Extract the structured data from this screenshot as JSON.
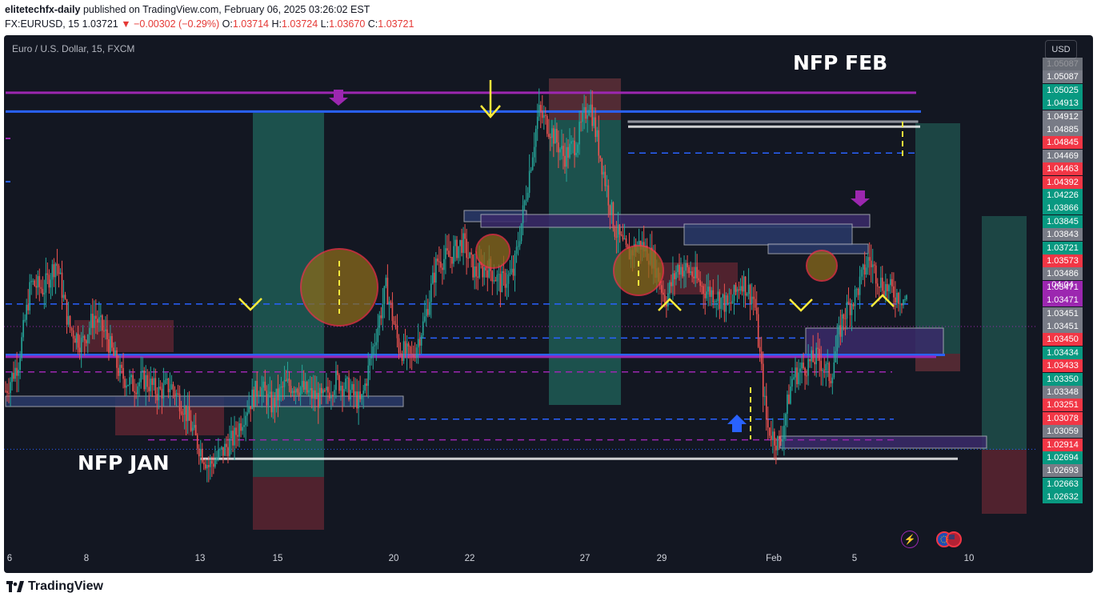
{
  "header": {
    "publisher": "elitetechfx-daily",
    "published_text": " published on TradingView.com, February 06, 2025 03:26:02 EST",
    "symbol": "FX:EURUSD, 15",
    "last": "1.03721",
    "change": "▼ −0.00302 (−0.29%)",
    "o_label": "O:",
    "o": "1.03714",
    "h_label": "H:",
    "h": "1.03724",
    "l_label": "L:",
    "l": "1.03670",
    "c_label": "C:",
    "c": "1.03721"
  },
  "chart": {
    "title": "Euro / U.S. Dollar, 15, FXCM",
    "currency_button": "USD",
    "annotation_feb": "NFP FEB",
    "annotation_jan": "NFP JAN",
    "countdown": "04:04"
  },
  "colors": {
    "background": "#131722",
    "up_candle": "#26a69a",
    "down_candle": "#ef5350",
    "purple_line": "#9c27b0",
    "blue_line": "#2962ff",
    "yellow": "#ffeb3b"
  },
  "chart_data": {
    "type": "candlestick",
    "symbol": "EURUSD",
    "timeframe": "15",
    "ylim": [
      1.0255,
      1.0518
    ],
    "x_ticks": [
      "6",
      "8",
      "13",
      "15",
      "20",
      "22",
      "27",
      "29",
      "Feb",
      "5",
      "10"
    ],
    "price_scale": [
      {
        "value": "1.05087",
        "color": "#b2b5be",
        "faded": true
      },
      {
        "value": "1.05087",
        "color": "#787b86"
      },
      {
        "value": "1.05025",
        "color": "#089981"
      },
      {
        "value": "1.04913",
        "color": "#089981"
      },
      {
        "value": "1.04912",
        "color": "#787b86"
      },
      {
        "value": "1.04885",
        "color": "#787b86"
      },
      {
        "value": "1.04845",
        "color": "#f23645"
      },
      {
        "value": "1.04469",
        "color": "#787b86"
      },
      {
        "value": "1.04463",
        "color": "#f23645"
      },
      {
        "value": "1.04392",
        "color": "#f23645"
      },
      {
        "value": "1.04226",
        "color": "#089981"
      },
      {
        "value": "1.03866",
        "color": "#089981"
      },
      {
        "value": "1.03845",
        "color": "#089981"
      },
      {
        "value": "1.03843",
        "color": "#787b86"
      },
      {
        "value": "1.03721",
        "color": "#089981"
      },
      {
        "value": "1.03573",
        "color": "#f23645"
      },
      {
        "value": "1.03486",
        "color": "#787b86"
      },
      {
        "value": "1.03471",
        "color": "#9c27b0"
      },
      {
        "value": "1.03471",
        "color": "#9c27b0"
      },
      {
        "value": "1.03451",
        "color": "#787b86"
      },
      {
        "value": "1.03451",
        "color": "#787b86"
      },
      {
        "value": "1.03450",
        "color": "#f23645"
      },
      {
        "value": "1.03434",
        "color": "#089981"
      },
      {
        "value": "1.03433",
        "color": "#f23645"
      },
      {
        "value": "1.03350",
        "color": "#089981"
      },
      {
        "value": "1.03348",
        "color": "#787b86"
      },
      {
        "value": "1.03251",
        "color": "#f23645"
      },
      {
        "value": "1.03078",
        "color": "#f23645"
      },
      {
        "value": "1.03059",
        "color": "#787b86"
      },
      {
        "value": "1.02914",
        "color": "#f23645"
      },
      {
        "value": "1.02694",
        "color": "#089981"
      },
      {
        "value": "1.02693",
        "color": "#787b86"
      },
      {
        "value": "1.02663",
        "color": "#089981"
      },
      {
        "value": "1.02632",
        "color": "#089981"
      }
    ],
    "price_path": [
      [
        0,
        1.0338
      ],
      [
        1,
        1.0353
      ],
      [
        2,
        1.0395
      ],
      [
        3,
        1.0392
      ],
      [
        4,
        1.0407
      ],
      [
        5,
        1.0372
      ],
      [
        6,
        1.0363
      ],
      [
        7,
        1.0378
      ],
      [
        8,
        1.0366
      ],
      [
        9,
        1.0347
      ],
      [
        10,
        1.0341
      ],
      [
        11,
        1.0344
      ],
      [
        12,
        1.0337
      ],
      [
        13,
        1.0341
      ],
      [
        14,
        1.033
      ],
      [
        15,
        1.0312
      ],
      [
        16,
        1.0298
      ],
      [
        17,
        1.0305
      ],
      [
        18,
        1.0313
      ],
      [
        19,
        1.0329
      ],
      [
        20,
        1.0341
      ],
      [
        21,
        1.033
      ],
      [
        22,
        1.0341
      ],
      [
        23,
        1.0341
      ],
      [
        24,
        1.0336
      ],
      [
        25,
        1.0333
      ],
      [
        26,
        1.0344
      ],
      [
        27,
        1.0339
      ],
      [
        28,
        1.0331
      ],
      [
        29,
        1.0362
      ],
      [
        30,
        1.0393
      ],
      [
        31,
        1.0361
      ],
      [
        32,
        1.0355
      ],
      [
        33,
        1.0375
      ],
      [
        34,
        1.0407
      ],
      [
        35,
        1.0409
      ],
      [
        36,
        1.0417
      ],
      [
        37,
        1.04
      ],
      [
        38,
        1.0404
      ],
      [
        39,
        1.0395
      ],
      [
        40,
        1.04
      ],
      [
        41,
        1.0442
      ],
      [
        42,
        1.0486
      ],
      [
        43,
        1.0476
      ],
      [
        44,
        1.0462
      ],
      [
        45,
        1.047
      ],
      [
        46,
        1.0492
      ],
      [
        47,
        1.0458
      ],
      [
        48,
        1.0424
      ],
      [
        49,
        1.041
      ],
      [
        50,
        1.0416
      ],
      [
        51,
        1.0408
      ],
      [
        52,
        1.0386
      ],
      [
        53,
        1.0404
      ],
      [
        54,
        1.0401
      ],
      [
        55,
        1.0392
      ],
      [
        56,
        1.0389
      ],
      [
        57,
        1.0382
      ],
      [
        58,
        1.0397
      ],
      [
        59,
        1.0386
      ],
      [
        60,
        1.0319
      ],
      [
        61,
        1.0309
      ],
      [
        62,
        1.0345
      ],
      [
        63,
        1.0351
      ],
      [
        64,
        1.0356
      ],
      [
        65,
        1.0345
      ],
      [
        66,
        1.0378
      ],
      [
        67,
        1.0389
      ],
      [
        68,
        1.0408
      ],
      [
        69,
        1.0395
      ],
      [
        70,
        1.039
      ],
      [
        71,
        1.0386
      ]
    ],
    "path_x_range": [
      0,
      71
    ],
    "horizontal_levels": [
      {
        "price": 1.0496,
        "color": "#9c27b0",
        "style": "solid"
      },
      {
        "price": 1.0486,
        "color": "#2962ff",
        "style": "solid"
      },
      {
        "price": 1.0357,
        "color": "#2962ff",
        "style": "solid"
      },
      {
        "price": 1.0356,
        "color": "#9c27b0",
        "style": "solid"
      },
      {
        "price": 1.0384,
        "color": "#2962ff",
        "style": "dashed"
      },
      {
        "price": 1.0348,
        "color": "#9c27b0",
        "style": "dashed"
      },
      {
        "price": 1.0323,
        "color": "#2962ff",
        "style": "dashed"
      },
      {
        "price": 1.0312,
        "color": "#9c27b0",
        "style": "dashed"
      },
      {
        "price": 1.0464,
        "color": "#2962ff",
        "style": "dashed"
      },
      {
        "price": 1.0366,
        "color": "#2962ff",
        "style": "dashed"
      },
      {
        "price": 1.0302,
        "color": "#ffffff",
        "style": "solid"
      },
      {
        "price": 1.0478,
        "color": "#ffffff",
        "style": "solid"
      }
    ]
  }
}
